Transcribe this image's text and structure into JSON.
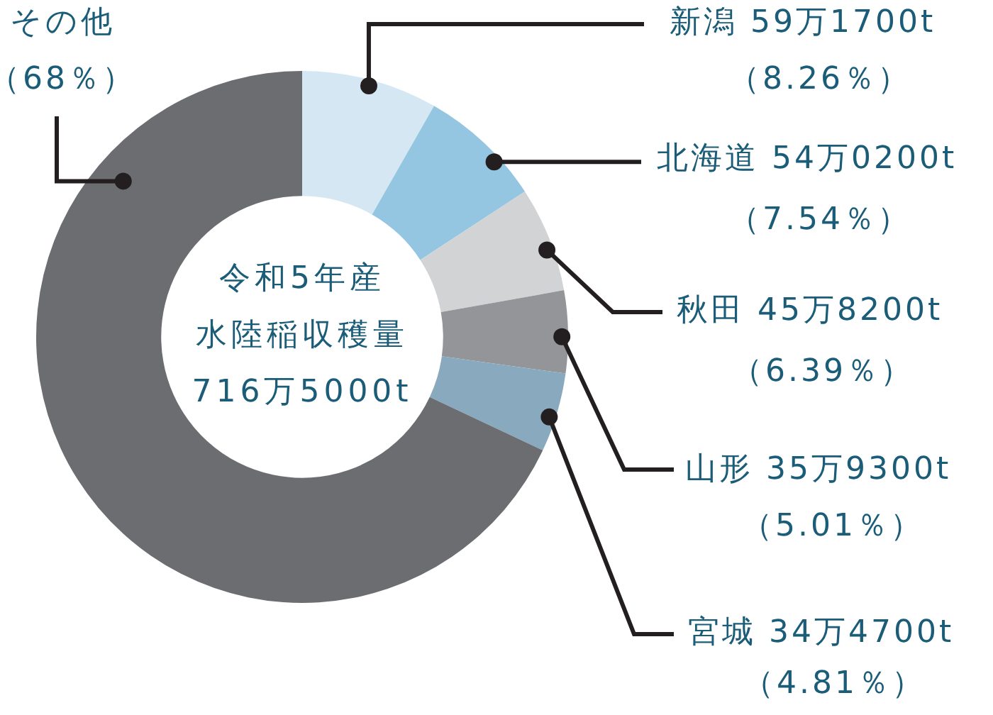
{
  "chart_data": {
    "type": "donut",
    "categories": [
      "新潟 59万1700t",
      "北海道 54万0200t",
      "秋田 45万8200t",
      "山形 35万9300t",
      "宮城 34万4700t",
      "その他"
    ],
    "values": [
      8.26,
      7.54,
      6.39,
      5.01,
      4.81,
      68
    ],
    "value_labels": [
      "（8.26％）",
      "（7.54％）",
      "（6.39％）",
      "（5.01％）",
      "（4.81％）",
      "（68％）"
    ],
    "colors": [
      "#d4e7f3",
      "#94c6e2",
      "#d2d3d5",
      "#939598",
      "#88a9be",
      "#6c6d71"
    ],
    "annotations": [
      "令和5年産",
      "水陸稲収穫量",
      "716万5000t"
    ]
  }
}
